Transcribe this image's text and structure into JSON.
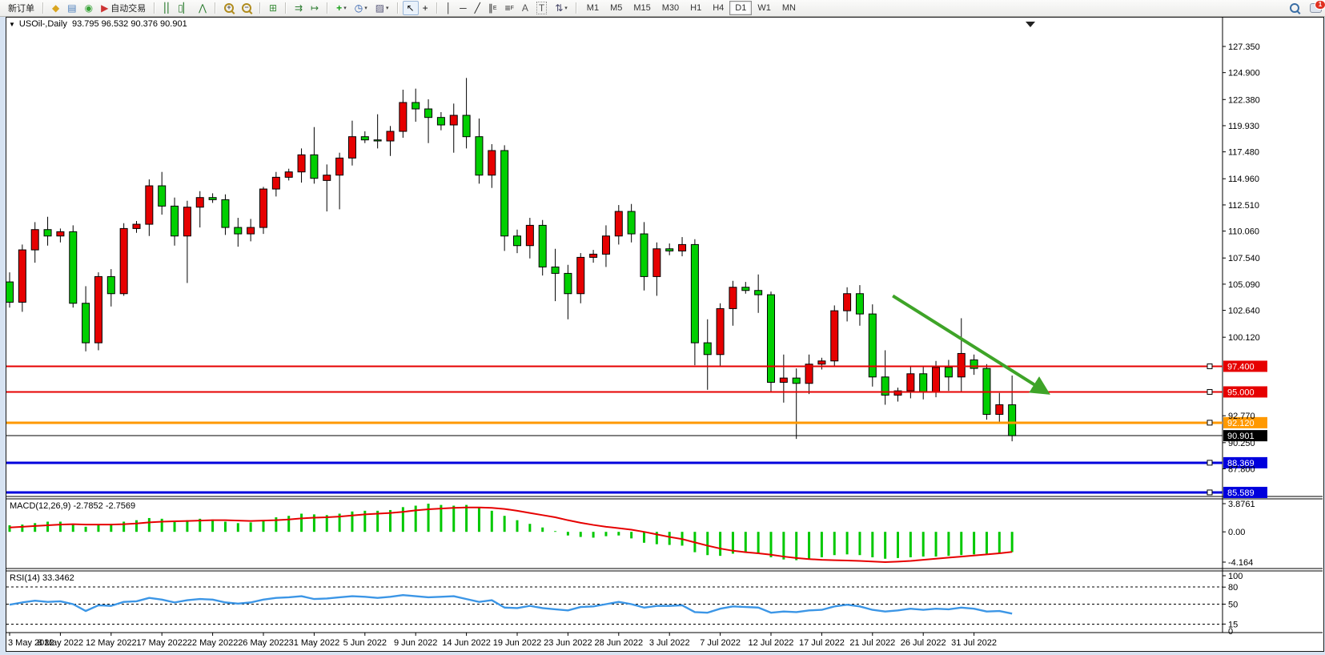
{
  "toolbar": {
    "new_order_label": "新订单",
    "autotrading_label": "自动交易",
    "timeframes": [
      "M1",
      "M5",
      "M15",
      "M30",
      "H1",
      "H4",
      "D1",
      "W1",
      "MN"
    ],
    "active_timeframe": "D1",
    "notification_count": "1"
  },
  "chart": {
    "title": "USOil-,Daily",
    "ohlc_display": "93.795 96.532 90.376 90.901"
  },
  "chart_data": {
    "type": "candlestick",
    "symbol": "USOil-,Daily",
    "current": {
      "open": 93.795,
      "high": 96.532,
      "low": 90.376,
      "close": 90.901
    },
    "bull_color": "#e60000",
    "bear_color": "#00cf00",
    "ylim": [
      85.1,
      129.1
    ],
    "y_ticks": [
      127.35,
      124.9,
      122.38,
      119.93,
      117.48,
      114.96,
      112.51,
      110.06,
      107.54,
      105.09,
      102.64,
      100.12,
      92.77,
      90.25,
      87.8
    ],
    "x_labels": [
      {
        "label": "3 May 2022",
        "i": 0
      },
      {
        "label": "8 May 2022",
        "i": 4
      },
      {
        "label": "12 May 2022",
        "i": 8
      },
      {
        "label": "17 May 2022",
        "i": 12
      },
      {
        "label": "22 May 2022",
        "i": 16
      },
      {
        "label": "26 May 2022",
        "i": 20
      },
      {
        "label": "31 May 2022",
        "i": 24
      },
      {
        "label": "5 Jun 2022",
        "i": 28
      },
      {
        "label": "9 Jun 2022",
        "i": 32
      },
      {
        "label": "14 Jun 2022",
        "i": 36
      },
      {
        "label": "19 Jun 2022",
        "i": 40
      },
      {
        "label": "23 Jun 2022",
        "i": 44
      },
      {
        "label": "28 Jun 2022",
        "i": 48
      },
      {
        "label": "3 Jul 2022",
        "i": 52
      },
      {
        "label": "7 Jul 2022",
        "i": 56
      },
      {
        "label": "12 Jul 2022",
        "i": 60
      },
      {
        "label": "17 Jul 2022",
        "i": 64
      },
      {
        "label": "21 Jul 2022",
        "i": 68
      },
      {
        "label": "26 Jul 2022",
        "i": 72
      },
      {
        "label": "31 Jul 2022",
        "i": 76
      }
    ],
    "candles": [
      [
        105.3,
        106.2,
        102.9,
        103.4
      ],
      [
        103.4,
        108.8,
        102.5,
        108.3
      ],
      [
        108.3,
        110.9,
        107.1,
        110.2
      ],
      [
        110.2,
        111.4,
        108.7,
        109.6
      ],
      [
        109.6,
        110.3,
        109.0,
        110.0
      ],
      [
        110.0,
        110.6,
        102.9,
        103.3
      ],
      [
        103.3,
        104.9,
        98.8,
        99.6
      ],
      [
        99.6,
        106.2,
        98.9,
        105.8
      ],
      [
        105.8,
        106.5,
        103.0,
        104.2
      ],
      [
        104.2,
        110.8,
        104.0,
        110.3
      ],
      [
        110.3,
        111.0,
        109.9,
        110.7
      ],
      [
        110.7,
        114.9,
        109.6,
        114.3
      ],
      [
        114.3,
        115.6,
        111.6,
        112.4
      ],
      [
        112.4,
        113.2,
        108.7,
        109.6
      ],
      [
        109.6,
        112.9,
        105.2,
        112.3
      ],
      [
        112.3,
        113.8,
        110.4,
        113.2
      ],
      [
        113.2,
        113.6,
        112.7,
        113.0
      ],
      [
        113.0,
        113.5,
        109.7,
        110.4
      ],
      [
        110.4,
        111.3,
        108.6,
        109.8
      ],
      [
        109.8,
        111.2,
        109.1,
        110.4
      ],
      [
        110.4,
        114.2,
        109.8,
        114.0
      ],
      [
        114.0,
        115.6,
        113.3,
        115.1
      ],
      [
        115.1,
        115.9,
        114.8,
        115.6
      ],
      [
        115.6,
        117.8,
        114.6,
        117.2
      ],
      [
        117.2,
        119.8,
        114.5,
        115.0
      ],
      [
        114.8,
        116.3,
        111.9,
        115.3
      ],
      [
        115.3,
        117.4,
        112.1,
        116.9
      ],
      [
        116.9,
        120.4,
        116.2,
        118.9
      ],
      [
        118.9,
        119.4,
        118.3,
        118.6
      ],
      [
        118.6,
        121.0,
        117.8,
        118.5
      ],
      [
        118.5,
        119.9,
        117.1,
        119.4
      ],
      [
        119.4,
        123.3,
        118.8,
        122.1
      ],
      [
        122.1,
        123.4,
        120.3,
        121.5
      ],
      [
        121.5,
        122.4,
        118.3,
        120.7
      ],
      [
        120.7,
        121.2,
        119.5,
        120.0
      ],
      [
        120.0,
        122.0,
        117.4,
        120.9
      ],
      [
        120.9,
        124.4,
        117.8,
        118.9
      ],
      [
        118.9,
        120.6,
        114.5,
        115.3
      ],
      [
        115.3,
        118.2,
        114.1,
        117.6
      ],
      [
        117.6,
        118.1,
        108.2,
        109.6
      ],
      [
        109.6,
        110.2,
        108.0,
        108.7
      ],
      [
        108.7,
        111.3,
        107.5,
        110.6
      ],
      [
        110.6,
        111.1,
        105.9,
        106.7
      ],
      [
        106.7,
        108.4,
        103.5,
        106.1
      ],
      [
        106.1,
        106.9,
        101.8,
        104.2
      ],
      [
        104.2,
        108.0,
        103.3,
        107.6
      ],
      [
        107.6,
        108.3,
        107.1,
        107.9
      ],
      [
        107.9,
        110.6,
        106.7,
        109.6
      ],
      [
        109.6,
        112.5,
        108.8,
        111.9
      ],
      [
        111.9,
        112.6,
        109.0,
        109.8
      ],
      [
        109.8,
        110.9,
        104.5,
        105.8
      ],
      [
        105.8,
        109.0,
        104.0,
        108.4
      ],
      [
        108.4,
        108.9,
        107.8,
        108.2
      ],
      [
        108.2,
        109.5,
        107.7,
        108.8
      ],
      [
        108.8,
        109.3,
        97.5,
        99.6
      ],
      [
        99.6,
        101.8,
        95.2,
        98.5
      ],
      [
        98.5,
        103.3,
        97.4,
        102.8
      ],
      [
        102.8,
        105.4,
        101.2,
        104.8
      ],
      [
        104.8,
        105.3,
        104.2,
        104.5
      ],
      [
        104.5,
        106.0,
        102.4,
        104.1
      ],
      [
        104.1,
        104.4,
        95.0,
        95.9
      ],
      [
        95.9,
        98.5,
        94.0,
        96.3
      ],
      [
        96.3,
        97.2,
        90.6,
        95.8
      ],
      [
        95.8,
        98.5,
        94.8,
        97.6
      ],
      [
        97.6,
        98.2,
        97.1,
        97.9
      ],
      [
        97.9,
        103.1,
        97.4,
        102.6
      ],
      [
        102.6,
        104.8,
        101.6,
        104.2
      ],
      [
        104.2,
        105.0,
        101.2,
        102.3
      ],
      [
        102.3,
        103.2,
        95.5,
        96.4
      ],
      [
        96.4,
        98.9,
        93.8,
        94.7
      ],
      [
        94.7,
        95.4,
        94.1,
        95.1
      ],
      [
        95.1,
        97.4,
        94.4,
        96.7
      ],
      [
        96.7,
        97.4,
        94.3,
        95.0
      ],
      [
        95.0,
        97.9,
        94.5,
        97.3
      ],
      [
        97.3,
        98.0,
        95.1,
        96.4
      ],
      [
        96.4,
        101.9,
        95.0,
        98.6
      ],
      [
        98.0,
        98.5,
        96.6,
        97.2
      ],
      [
        97.2,
        97.6,
        92.4,
        92.9
      ],
      [
        92.9,
        94.9,
        92.2,
        93.8
      ],
      [
        93.795,
        96.532,
        90.376,
        90.901
      ]
    ],
    "hlines": [
      {
        "price": 97.4,
        "label": "97.400",
        "color": "#e60000",
        "width": 2,
        "handle": true
      },
      {
        "price": 95.0,
        "label": "95.000",
        "color": "#e60000",
        "width": 2,
        "handle": true
      },
      {
        "price": 92.12,
        "label": "92.120",
        "color": "#ff9900",
        "width": 3,
        "handle": true
      },
      {
        "price": 90.901,
        "label": "90.901",
        "color": "#000000",
        "width": 1,
        "handle": false
      },
      {
        "price": 88.369,
        "label": "88.369",
        "color": "#0000dd",
        "width": 3,
        "handle": true
      },
      {
        "price": 85.589,
        "label": "85.589",
        "color": "#0000dd",
        "width": 3,
        "handle": true
      }
    ],
    "trend_arrow": {
      "from_index": 69.6,
      "from_price": 104.0,
      "to_index": 81.8,
      "to_price": 94.9,
      "color": "#3ea428",
      "width": 4
    },
    "macd": {
      "label": "MACD(12,26,9) -2.7852 -2.7569",
      "params": "12,26,9",
      "value_main": -2.7852,
      "value_signal": -2.7569,
      "axis_labels": [
        "3.8761",
        "0.00",
        "-4.164"
      ],
      "ylim": [
        -4.164,
        3.8761
      ],
      "hist_color": "#00c800",
      "signal_color": "#e60000",
      "histogram": [
        0.9,
        1.0,
        1.2,
        1.4,
        1.4,
        1.1,
        0.7,
        0.9,
        1.1,
        1.4,
        1.6,
        1.9,
        1.8,
        1.5,
        1.6,
        1.8,
        1.7,
        1.4,
        1.2,
        1.3,
        1.6,
        2.0,
        2.2,
        2.5,
        2.4,
        2.3,
        2.5,
        2.8,
        2.9,
        2.9,
        3.0,
        3.4,
        3.6,
        3.8761,
        3.7,
        3.6,
        3.7,
        3.3,
        2.9,
        2.2,
        1.6,
        1.1,
        0.6,
        0.1,
        -0.5,
        -0.7,
        -0.8,
        -0.6,
        -0.5,
        -0.9,
        -1.5,
        -1.7,
        -1.8,
        -1.9,
        -2.8,
        -3.2,
        -3.3,
        -3.0,
        -2.8,
        -3.0,
        -3.5,
        -3.8,
        -3.9,
        -3.7,
        -3.5,
        -3.2,
        -3.1,
        -3.2,
        -3.5,
        -3.7,
        -3.6,
        -3.5,
        -3.4,
        -3.4,
        -3.3,
        -3.2,
        -3.1,
        -3.0,
        -2.9,
        -2.7852
      ],
      "signal": [
        0.6,
        0.7,
        0.8,
        0.9,
        1.0,
        1.05,
        1.0,
        1.0,
        1.0,
        1.05,
        1.15,
        1.3,
        1.4,
        1.45,
        1.5,
        1.55,
        1.6,
        1.6,
        1.55,
        1.5,
        1.55,
        1.6,
        1.7,
        1.85,
        1.95,
        2.0,
        2.1,
        2.25,
        2.4,
        2.5,
        2.6,
        2.75,
        2.95,
        3.1,
        3.2,
        3.3,
        3.35,
        3.35,
        3.3,
        3.15,
        2.9,
        2.6,
        2.3,
        2.0,
        1.6,
        1.25,
        0.95,
        0.7,
        0.5,
        0.3,
        0.0,
        -0.35,
        -0.7,
        -1.0,
        -1.45,
        -1.9,
        -2.3,
        -2.6,
        -2.8,
        -2.95,
        -3.15,
        -3.4,
        -3.6,
        -3.75,
        -3.85,
        -3.9,
        -3.95,
        -4.0,
        -4.08,
        -4.164,
        -4.1,
        -4.0,
        -3.85,
        -3.7,
        -3.55,
        -3.4,
        -3.25,
        -3.1,
        -2.95,
        -2.7569
      ]
    },
    "rsi": {
      "label": "RSI(14) 33.3462",
      "value": 33.3462,
      "axis_labels": [
        "100",
        "80",
        "50",
        "15",
        "0"
      ],
      "levels": [
        80,
        50,
        15
      ],
      "ylim": [
        0,
        100
      ],
      "line_color": "#3c96e6",
      "values": [
        49,
        53,
        56,
        54,
        55,
        50,
        38,
        48,
        47,
        54,
        55,
        61,
        58,
        53,
        57,
        59,
        58,
        53,
        51,
        53,
        58,
        61,
        62,
        64,
        59,
        60,
        62,
        64,
        63,
        61,
        63,
        66,
        64,
        62,
        63,
        64,
        59,
        54,
        57,
        44,
        43,
        47,
        43,
        41,
        39,
        45,
        46,
        50,
        54,
        50,
        44,
        47,
        47,
        48,
        36,
        35,
        42,
        46,
        45,
        44,
        35,
        37,
        36,
        39,
        40,
        46,
        49,
        46,
        40,
        37,
        39,
        42,
        40,
        42,
        41,
        44,
        42,
        37,
        38,
        33.3462
      ]
    }
  }
}
